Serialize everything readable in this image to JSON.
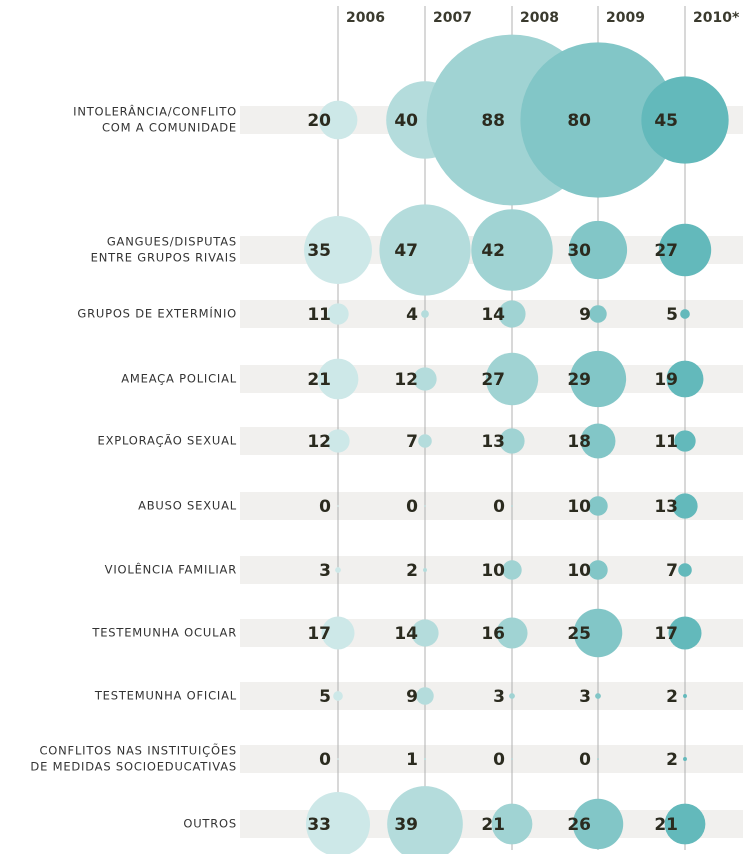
{
  "chart_data": {
    "type": "bubble",
    "categories": [
      [
        "INTOLERÂNCIA/CONFLITO",
        "COM A COMUNIDADE"
      ],
      [
        "GANGUES/DISPUTAS",
        "ENTRE GRUPOS RIVAIS"
      ],
      [
        "GRUPOS DE EXTERMÍNIO"
      ],
      [
        "AMEAÇA POLICIAL"
      ],
      [
        "EXPLORAÇÃO SEXUAL"
      ],
      [
        "ABUSO SEXUAL"
      ],
      [
        "VIOLÊNCIA FAMILIAR"
      ],
      [
        "TESTEMUNHA OCULAR"
      ],
      [
        "TESTEMUNHA OFICIAL"
      ],
      [
        "CONFLITOS NAS INSTITUIÇÕES",
        "DE MEDIDAS SOCIOEDUCATIVAS"
      ],
      [
        "OUTROS"
      ]
    ],
    "series": [
      {
        "name": "2006",
        "color": "#cde8e8",
        "values": [
          20,
          35,
          11,
          21,
          12,
          0,
          3,
          17,
          5,
          0,
          33
        ]
      },
      {
        "name": "2007",
        "color": "#b4dcdc",
        "values": [
          40,
          47,
          4,
          12,
          7,
          0,
          2,
          14,
          9,
          1,
          39
        ]
      },
      {
        "name": "2008",
        "color": "#a0d3d3",
        "values": [
          88,
          42,
          14,
          27,
          13,
          0,
          10,
          16,
          3,
          0,
          21
        ]
      },
      {
        "name": "2009",
        "color": "#82c6c7",
        "values": [
          80,
          30,
          9,
          29,
          18,
          10,
          10,
          25,
          3,
          0,
          26
        ]
      },
      {
        "name": "2010*",
        "color": "#63b9bb",
        "values": [
          45,
          27,
          5,
          19,
          11,
          13,
          7,
          17,
          2,
          2,
          21
        ]
      }
    ]
  }
}
